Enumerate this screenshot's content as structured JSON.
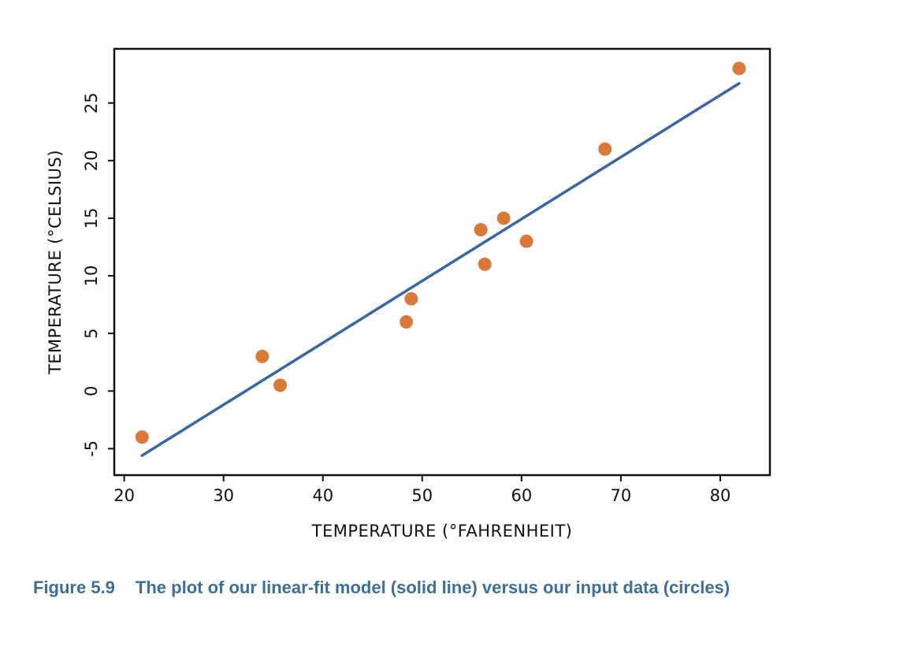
{
  "chart_data": {
    "type": "scatter",
    "xlabel": "TEMPERATURE (°FAHRENHEIT)",
    "ylabel": "TEMPERATURE (°CELSIUS)",
    "xlim": [
      19.0,
      85.0
    ],
    "ylim": [
      -7.3,
      29.7
    ],
    "x_ticks": [
      20,
      30,
      40,
      50,
      60,
      70,
      80
    ],
    "y_ticks": [
      -5,
      0,
      5,
      10,
      15,
      20,
      25
    ],
    "grid": false,
    "points": [
      {
        "x": 21.8,
        "y": -4.0
      },
      {
        "x": 33.9,
        "y": 3.0
      },
      {
        "x": 35.7,
        "y": 0.5
      },
      {
        "x": 48.4,
        "y": 6.0
      },
      {
        "x": 48.9,
        "y": 8.0
      },
      {
        "x": 55.9,
        "y": 14.0
      },
      {
        "x": 56.3,
        "y": 11.0
      },
      {
        "x": 58.2,
        "y": 15.0
      },
      {
        "x": 60.5,
        "y": 13.0
      },
      {
        "x": 68.4,
        "y": 21.0
      },
      {
        "x": 81.9,
        "y": 28.0
      }
    ],
    "fit_line": {
      "x": [
        21.8,
        81.9
      ],
      "y": [
        -5.6,
        26.7
      ]
    },
    "colors": {
      "points": "#d97a3a",
      "line": "#3a66a0",
      "axes": "#111111"
    }
  },
  "caption": {
    "number": "Figure 5.9",
    "text": "The plot of our linear-fit model (solid line) versus our input data (circles)",
    "color": "#3d6e96"
  }
}
